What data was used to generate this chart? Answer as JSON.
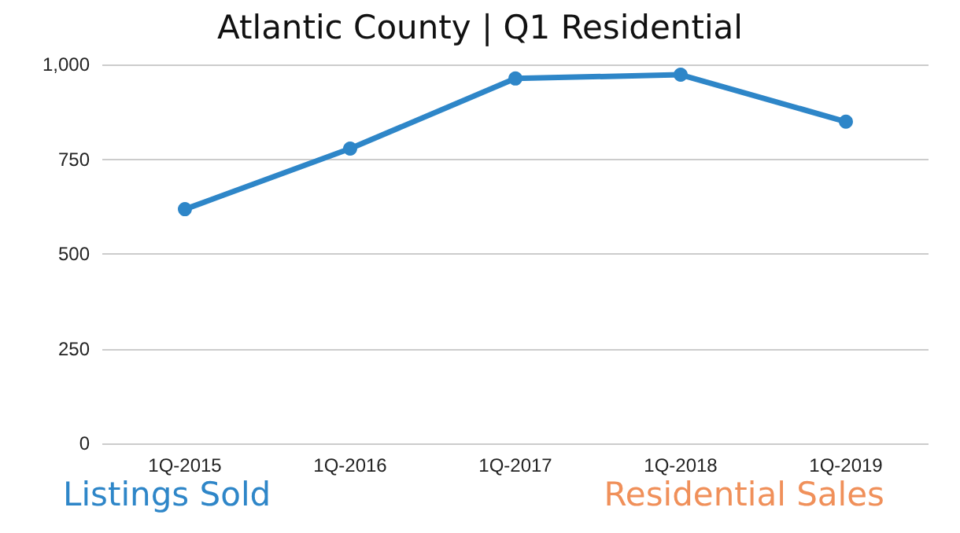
{
  "chart_data": {
    "type": "line",
    "title": "Atlantic County | Q1 Residential",
    "categories": [
      "1Q-2015",
      "1Q-2016",
      "1Q-2017",
      "1Q-2018",
      "1Q-2019"
    ],
    "series": [
      {
        "color": "#2e86c8",
        "values": [
          618,
          778,
          963,
          973,
          849
        ]
      }
    ],
    "ylim": [
      0,
      1000
    ],
    "yticks": [
      0,
      250,
      500,
      750,
      {
        "value": 1000,
        "label": "1,000"
      }
    ],
    "grid": "y",
    "marker": "circle",
    "line_style": "solid",
    "annotations": [
      "Listings Sold",
      "Residential Sales"
    ]
  }
}
